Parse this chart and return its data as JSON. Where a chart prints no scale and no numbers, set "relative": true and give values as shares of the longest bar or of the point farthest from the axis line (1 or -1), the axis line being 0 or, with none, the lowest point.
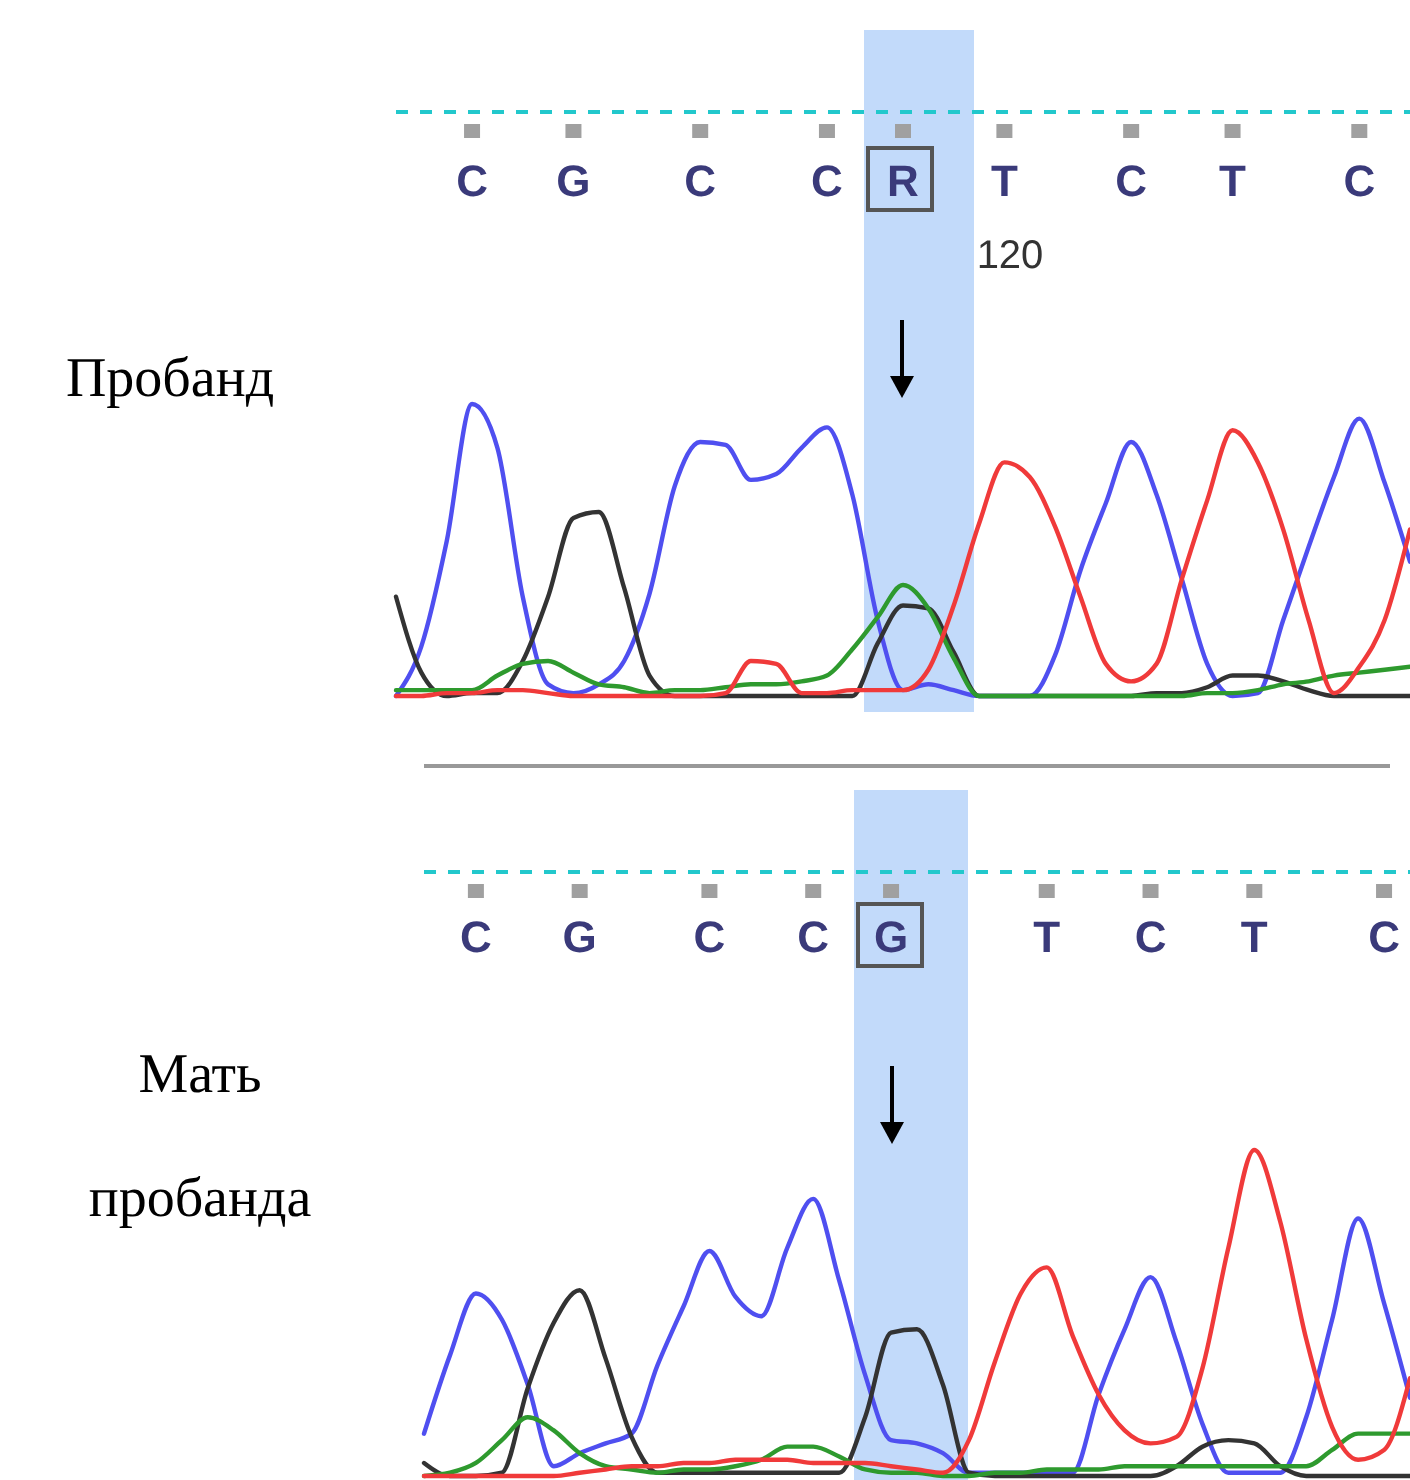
{
  "chart_data": [
    {
      "type": "line",
      "title": "Пробанд",
      "relative": true,
      "categories": [
        null,
        null,
        null,
        "C",
        null,
        null,
        null,
        "G",
        null,
        null,
        null,
        null,
        "C",
        null,
        null,
        null,
        null,
        "C",
        null,
        null,
        "R",
        null,
        null,
        null,
        "T",
        null,
        null,
        null,
        null,
        "C",
        null,
        null,
        null,
        "T",
        null,
        null,
        null,
        null,
        "C",
        null,
        null
      ],
      "annotations": [
        "120"
      ],
      "series": [
        {
          "color": "#4f4ff0",
          "values": [
            0,
            0.17,
            0.53,
            1,
            0.85,
            0.34,
            0.04,
            0.01,
            0.04,
            0.12,
            0.35,
            0.72,
            0.87,
            0.86,
            0.74,
            0.76,
            0.85,
            0.92,
            0.69,
            0.26,
            0.02,
            0.04,
            0.02,
            0,
            0,
            0,
            0.14,
            0.43,
            0.66,
            0.87,
            0.69,
            0.4,
            0.11,
            0,
            0.01,
            0.26,
            0.51,
            0.75,
            0.95,
            0.73,
            0.46
          ]
        },
        {
          "color": "#333333",
          "values": [
            0.34,
            0.08,
            0,
            0.01,
            0.01,
            0.12,
            0.34,
            0.61,
            0.63,
            0.37,
            0.07,
            0,
            0,
            0,
            0,
            0,
            0,
            0,
            0,
            0.18,
            0.31,
            0.3,
            0.15,
            0,
            0,
            0,
            0,
            0,
            0,
            0,
            0.01,
            0.01,
            0.03,
            0.07,
            0.07,
            0.05,
            0.02,
            0,
            0,
            0,
            0
          ]
        },
        {
          "color": "#2e9a2e",
          "values": [
            0.02,
            0.02,
            0.02,
            0.02,
            0.07,
            0.11,
            0.12,
            0.08,
            0.04,
            0.03,
            0.01,
            0.02,
            0.02,
            0.03,
            0.04,
            0.04,
            0.05,
            0.07,
            0.16,
            0.27,
            0.38,
            0.3,
            0.13,
            0,
            0,
            0,
            0,
            0,
            0,
            0,
            0,
            0,
            0.01,
            0.01,
            0.02,
            0.04,
            0.05,
            0.07,
            0.08,
            0.09,
            0.1
          ]
        },
        {
          "color": "#f03a3a",
          "values": [
            0,
            0,
            0.01,
            0.01,
            0.02,
            0.02,
            0.01,
            0,
            0,
            0,
            0,
            0,
            0,
            0.01,
            0.12,
            0.11,
            0.01,
            0.01,
            0.02,
            0.02,
            0.02,
            0.09,
            0.31,
            0.59,
            0.8,
            0.75,
            0.58,
            0.34,
            0.11,
            0.05,
            0.11,
            0.4,
            0.67,
            0.91,
            0.8,
            0.57,
            0.26,
            0.01,
            0.1,
            0.26,
            0.57
          ]
        }
      ]
    },
    {
      "type": "line",
      "title": "Мать пробанда",
      "relative": true,
      "categories": [
        null,
        null,
        "C",
        null,
        null,
        null,
        "G",
        null,
        null,
        null,
        null,
        "C",
        null,
        null,
        null,
        "C",
        null,
        null,
        "G",
        null,
        null,
        null,
        null,
        null,
        "T",
        null,
        null,
        null,
        "C",
        null,
        null,
        null,
        "T",
        null,
        null,
        null,
        null,
        "C",
        null
      ],
      "series": [
        {
          "color": "#4f4ff0",
          "values": [
            0.13,
            0.37,
            0.56,
            0.48,
            0.28,
            0.03,
            0.07,
            0.1,
            0.13,
            0.34,
            0.52,
            0.69,
            0.55,
            0.49,
            0.7,
            0.85,
            0.6,
            0.31,
            0.11,
            0.1,
            0.07,
            0.01,
            0.01,
            0.01,
            0.01,
            0.01,
            0.25,
            0.45,
            0.61,
            0.41,
            0.16,
            0.01,
            0.01,
            0.01,
            0.18,
            0.48,
            0.79,
            0.53,
            0.24
          ]
        },
        {
          "color": "#333333",
          "values": [
            0.04,
            0,
            0,
            0.01,
            0.27,
            0.47,
            0.57,
            0.36,
            0.12,
            0.01,
            0.01,
            0.01,
            0.01,
            0.01,
            0.01,
            0.01,
            0.01,
            0.18,
            0.44,
            0.45,
            0.28,
            0.01,
            0,
            0,
            0,
            0,
            0,
            0,
            0,
            0.03,
            0.09,
            0.11,
            0.1,
            0.03,
            0,
            0,
            0,
            0,
            0
          ]
        },
        {
          "color": "#2e9a2e",
          "values": [
            0,
            0.01,
            0.04,
            0.11,
            0.18,
            0.14,
            0.07,
            0.03,
            0.02,
            0.01,
            0.02,
            0.02,
            0.03,
            0.05,
            0.09,
            0.09,
            0.06,
            0.02,
            0.01,
            0.01,
            0,
            0,
            0.01,
            0.01,
            0.02,
            0.02,
            0.02,
            0.03,
            0.03,
            0.03,
            0.03,
            0.03,
            0.03,
            0.03,
            0.03,
            0.08,
            0.13,
            0.13,
            0.13
          ]
        },
        {
          "color": "#f03a3a",
          "values": [
            0,
            0,
            0,
            0,
            0,
            0,
            0.01,
            0.02,
            0.03,
            0.03,
            0.04,
            0.04,
            0.05,
            0.05,
            0.05,
            0.04,
            0.04,
            0.04,
            0.03,
            0.02,
            0.01,
            0.11,
            0.35,
            0.56,
            0.64,
            0.43,
            0.25,
            0.14,
            0.1,
            0.12,
            0.33,
            0.7,
            1,
            0.78,
            0.42,
            0.15,
            0.05,
            0.08,
            0.3
          ]
        }
      ]
    }
  ]
}
